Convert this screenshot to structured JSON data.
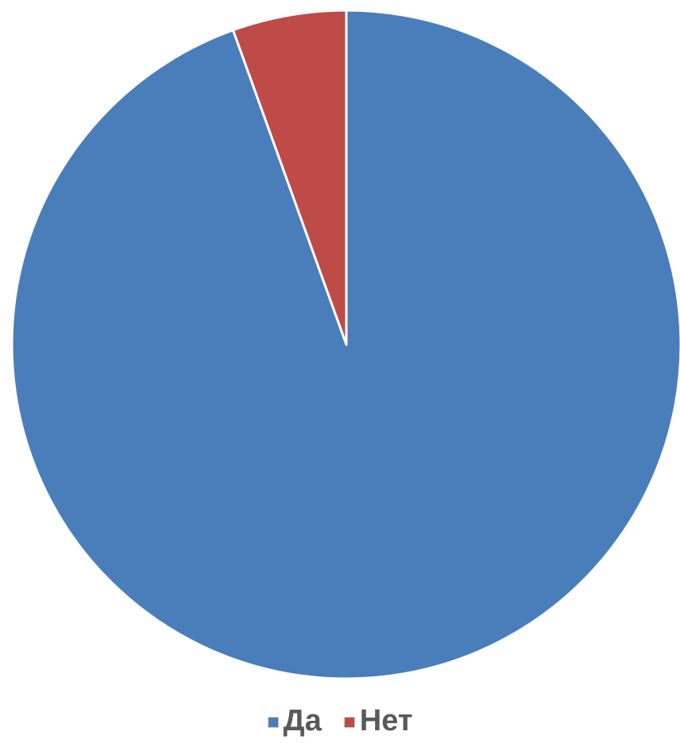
{
  "chart_data": {
    "type": "pie",
    "title": "",
    "slices": [
      {
        "label": "Да",
        "value": 94.5,
        "color": "#4a7ebb"
      },
      {
        "label": "Нет",
        "value": 5.5,
        "color": "#be4b48"
      }
    ],
    "start_angle_deg": 0,
    "direction": "clockwise",
    "legend": {
      "position": "bottom",
      "items": [
        {
          "label": "Да",
          "color": "#4a7ebb"
        },
        {
          "label": "Нет",
          "color": "#be4b48"
        }
      ]
    }
  }
}
